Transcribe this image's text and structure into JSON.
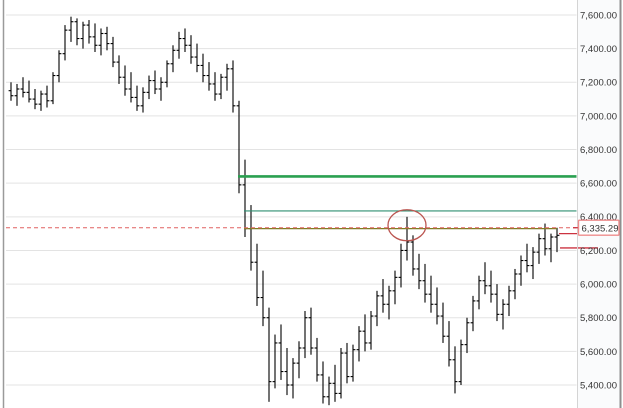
{
  "chart_data": {
    "type": "ohlc-bar",
    "title": "",
    "xlabel": "",
    "ylabel": "",
    "y_axis": {
      "grid": true,
      "side": "right",
      "tick_labels": [
        "7,600.00",
        "7,400.00",
        "7,200.00",
        "7,000.00",
        "6,800.00",
        "6,600.00",
        "6,400.00",
        "6,200.00",
        "6,000.00",
        "5,800.00",
        "5,600.00",
        "5,400.00"
      ],
      "tick_values": [
        7600,
        7400,
        7200,
        7000,
        6800,
        6600,
        6400,
        6200,
        6000,
        5800,
        5600,
        5400
      ],
      "ylim": [
        5250,
        7690
      ]
    },
    "current_price_label": {
      "text": "6,335.29",
      "value": 6335.29
    },
    "bars_ohlc": [
      [
        7150,
        7200,
        7090,
        7120
      ],
      [
        7120,
        7190,
        7060,
        7160
      ],
      [
        7160,
        7230,
        7110,
        7140
      ],
      [
        7140,
        7210,
        7080,
        7100
      ],
      [
        7100,
        7160,
        7040,
        7070
      ],
      [
        7070,
        7150,
        7030,
        7130
      ],
      [
        7130,
        7180,
        7050,
        7090
      ],
      [
        7090,
        7260,
        7070,
        7240
      ],
      [
        7240,
        7390,
        7200,
        7370
      ],
      [
        7370,
        7540,
        7330,
        7510
      ],
      [
        7510,
        7590,
        7440,
        7560
      ],
      [
        7560,
        7580,
        7420,
        7460
      ],
      [
        7460,
        7560,
        7400,
        7540
      ],
      [
        7540,
        7570,
        7430,
        7470
      ],
      [
        7470,
        7550,
        7380,
        7420
      ],
      [
        7420,
        7520,
        7360,
        7490
      ],
      [
        7490,
        7530,
        7390,
        7430
      ],
      [
        7430,
        7470,
        7290,
        7320
      ],
      [
        7320,
        7360,
        7190,
        7230
      ],
      [
        7230,
        7300,
        7120,
        7160
      ],
      [
        7160,
        7260,
        7080,
        7110
      ],
      [
        7110,
        7180,
        7030,
        7060
      ],
      [
        7060,
        7170,
        7020,
        7140
      ],
      [
        7140,
        7240,
        7100,
        7210
      ],
      [
        7210,
        7270,
        7130,
        7160
      ],
      [
        7160,
        7230,
        7090,
        7200
      ],
      [
        7200,
        7330,
        7170,
        7310
      ],
      [
        7310,
        7420,
        7260,
        7390
      ],
      [
        7390,
        7500,
        7340,
        7460
      ],
      [
        7460,
        7520,
        7380,
        7420
      ],
      [
        7420,
        7480,
        7310,
        7350
      ],
      [
        7350,
        7430,
        7260,
        7300
      ],
      [
        7300,
        7370,
        7200,
        7240
      ],
      [
        7240,
        7320,
        7150,
        7190
      ],
      [
        7190,
        7260,
        7090,
        7130
      ],
      [
        7130,
        7250,
        7100,
        7230
      ],
      [
        7230,
        7310,
        7150,
        7280
      ],
      [
        7280,
        7330,
        7020,
        7060
      ],
      [
        7060,
        7090,
        6540,
        6590
      ],
      [
        6590,
        6740,
        6280,
        6330
      ],
      [
        6330,
        6470,
        6080,
        6130
      ],
      [
        6130,
        6240,
        5870,
        5920
      ],
      [
        5920,
        6080,
        5750,
        5800
      ],
      [
        5800,
        5860,
        5300,
        5420
      ],
      [
        5420,
        5700,
        5380,
        5650
      ],
      [
        5650,
        5760,
        5430,
        5480
      ],
      [
        5480,
        5620,
        5340,
        5400
      ],
      [
        5400,
        5560,
        5320,
        5530
      ],
      [
        5530,
        5660,
        5440,
        5620
      ],
      [
        5620,
        5840,
        5560,
        5800
      ],
      [
        5800,
        5860,
        5580,
        5620
      ],
      [
        5620,
        5680,
        5420,
        5460
      ],
      [
        5460,
        5540,
        5290,
        5330
      ],
      [
        5330,
        5450,
        5280,
        5410
      ],
      [
        5410,
        5520,
        5300,
        5350
      ],
      [
        5350,
        5620,
        5320,
        5590
      ],
      [
        5590,
        5650,
        5410,
        5450
      ],
      [
        5450,
        5640,
        5420,
        5610
      ],
      [
        5610,
        5750,
        5540,
        5720
      ],
      [
        5720,
        5820,
        5600,
        5650
      ],
      [
        5650,
        5840,
        5610,
        5810
      ],
      [
        5810,
        5960,
        5750,
        5930
      ],
      [
        5930,
        6030,
        5830,
        5880
      ],
      [
        5880,
        5990,
        5790,
        5960
      ],
      [
        5960,
        6080,
        5880,
        6040
      ],
      [
        6040,
        6240,
        5980,
        6200
      ],
      [
        6200,
        6400,
        6140,
        6250
      ],
      [
        6250,
        6290,
        6050,
        6090
      ],
      [
        6090,
        6180,
        5970,
        6020
      ],
      [
        6020,
        6120,
        5890,
        5940
      ],
      [
        5940,
        6050,
        5830,
        5880
      ],
      [
        5880,
        5980,
        5760,
        5810
      ],
      [
        5810,
        5890,
        5650,
        5690
      ],
      [
        5690,
        5780,
        5510,
        5550
      ],
      [
        5550,
        5630,
        5350,
        5420
      ],
      [
        5420,
        5670,
        5400,
        5640
      ],
      [
        5640,
        5800,
        5590,
        5770
      ],
      [
        5770,
        5930,
        5720,
        5900
      ],
      [
        5900,
        6050,
        5850,
        6020
      ],
      [
        6020,
        6130,
        5940,
        5990
      ],
      [
        5990,
        6080,
        5890,
        5940
      ],
      [
        5940,
        6000,
        5780,
        5820
      ],
      [
        5820,
        5910,
        5730,
        5880
      ],
      [
        5880,
        5990,
        5810,
        5960
      ],
      [
        5960,
        6090,
        5910,
        6060
      ],
      [
        6060,
        6170,
        5990,
        6140
      ],
      [
        6140,
        6240,
        6070,
        6110
      ],
      [
        6110,
        6220,
        6030,
        6190
      ],
      [
        6190,
        6300,
        6120,
        6270
      ],
      [
        6270,
        6360,
        6170,
        6210
      ],
      [
        6210,
        6300,
        6130,
        6280
      ],
      [
        6280,
        6335,
        6190,
        6290
      ]
    ],
    "annotations": {
      "hlines": [
        {
          "name": "resistance-line-major",
          "value": 6640,
          "color": "#2aa050",
          "width": 2.6,
          "from": "bar",
          "from_bar": 38,
          "to": "right-edge",
          "dash": null
        },
        {
          "name": "resistance-line-minor",
          "value": 6435,
          "color": "#2f8f72",
          "width": 1.2,
          "from": "bar",
          "from_bar": 39,
          "to": "right-edge",
          "dash": null
        },
        {
          "name": "price-level-line",
          "value": 6330,
          "color": "#7d7d21",
          "width": 1.2,
          "from": "bar",
          "from_bar": 39,
          "to": "last-bar",
          "dash": null
        },
        {
          "name": "current-price-dashed-line",
          "value": 6335.29,
          "color": "#e06060",
          "width": 1,
          "from": "left-edge",
          "from_bar": null,
          "to": "right-edge",
          "dash": "4 3"
        }
      ],
      "right_markers": [
        {
          "name": "red-price-marker-upper",
          "value": 6300,
          "color": "#cc3340"
        },
        {
          "name": "red-price-marker-lower",
          "value": 6215,
          "color": "#cc3340"
        }
      ],
      "circle": {
        "bar_index": 66,
        "center_value": 6350,
        "color": "#bb5550"
      }
    },
    "colors": {
      "bar": "#000000",
      "grid": "#e3e3e3",
      "axis_text": "#333333",
      "axis_bg": "#fafbfc",
      "axis_separator": "#d4d4d4",
      "label_box_border": "#ee8c8c",
      "label_box_bg": "#ffffff",
      "window_border": "#9a9a9a"
    }
  }
}
